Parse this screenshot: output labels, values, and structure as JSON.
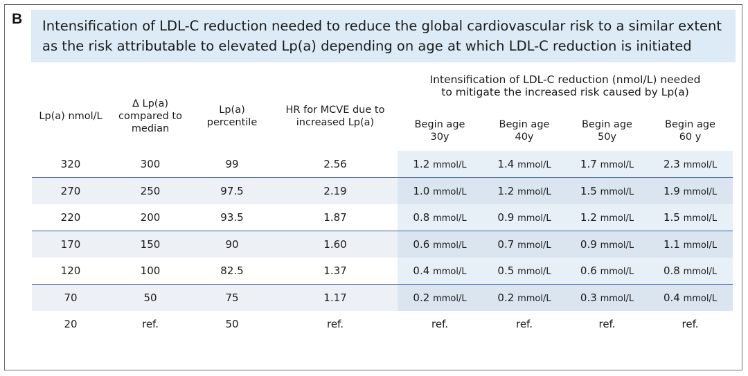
{
  "panel_label": "B",
  "title": {
    "line1": "Intensification of LDL-C reduction needed to reduce the global cardiovascular risk to a similar extent",
    "line2": "as the risk attributable to elevated Lp(a) depending on age at which LDL-C reduction is initiated"
  },
  "columns": {
    "lpa": "Lp(a) nmol/L",
    "delta_lines": [
      "Δ Lp(a)",
      "compared to",
      "median"
    ],
    "percentile_lines": [
      "Lp(a)",
      "percentile"
    ],
    "hr_lines": [
      "HR for MCVE due to",
      "increased Lp(a)"
    ],
    "group_lines": [
      "Intensification of LDL-C reduction (nmol/L) needed",
      "to mitigate the increased risk caused by Lp(a)"
    ],
    "ages": [
      [
        "Begin age",
        "30y"
      ],
      [
        "Begin age",
        "40y"
      ],
      [
        "Begin age",
        "50y"
      ],
      [
        "Begin age",
        "60 y"
      ]
    ]
  },
  "unit": "mmol/L",
  "rows": [
    {
      "lpa": "320",
      "delta": "300",
      "pct": "99",
      "hr": "2.56",
      "ages": [
        "1.2",
        "1.4",
        "1.7",
        "2.3"
      ]
    },
    {
      "lpa": "270",
      "delta": "250",
      "pct": "97.5",
      "hr": "2.19",
      "ages": [
        "1.0",
        "1.2",
        "1.5",
        "1.9"
      ]
    },
    {
      "lpa": "220",
      "delta": "200",
      "pct": "93.5",
      "hr": "1.87",
      "ages": [
        "0.8",
        "0.9",
        "1.2",
        "1.5"
      ]
    },
    {
      "lpa": "170",
      "delta": "150",
      "pct": "90",
      "hr": "1.60",
      "ages": [
        "0.6",
        "0.7",
        "0.9",
        "1.1"
      ]
    },
    {
      "lpa": "120",
      "delta": "100",
      "pct": "82.5",
      "hr": "1.37",
      "ages": [
        "0.4",
        "0.5",
        "0.6",
        "0.8"
      ]
    },
    {
      "lpa": "70",
      "delta": "50",
      "pct": "75",
      "hr": "1.17",
      "ages": [
        "0.2",
        "0.2",
        "0.3",
        "0.4"
      ]
    },
    {
      "lpa": "20",
      "delta": "ref.",
      "pct": "50",
      "hr": "ref.",
      "ages": [
        "ref.",
        "ref.",
        "ref.",
        "ref."
      ]
    }
  ]
}
